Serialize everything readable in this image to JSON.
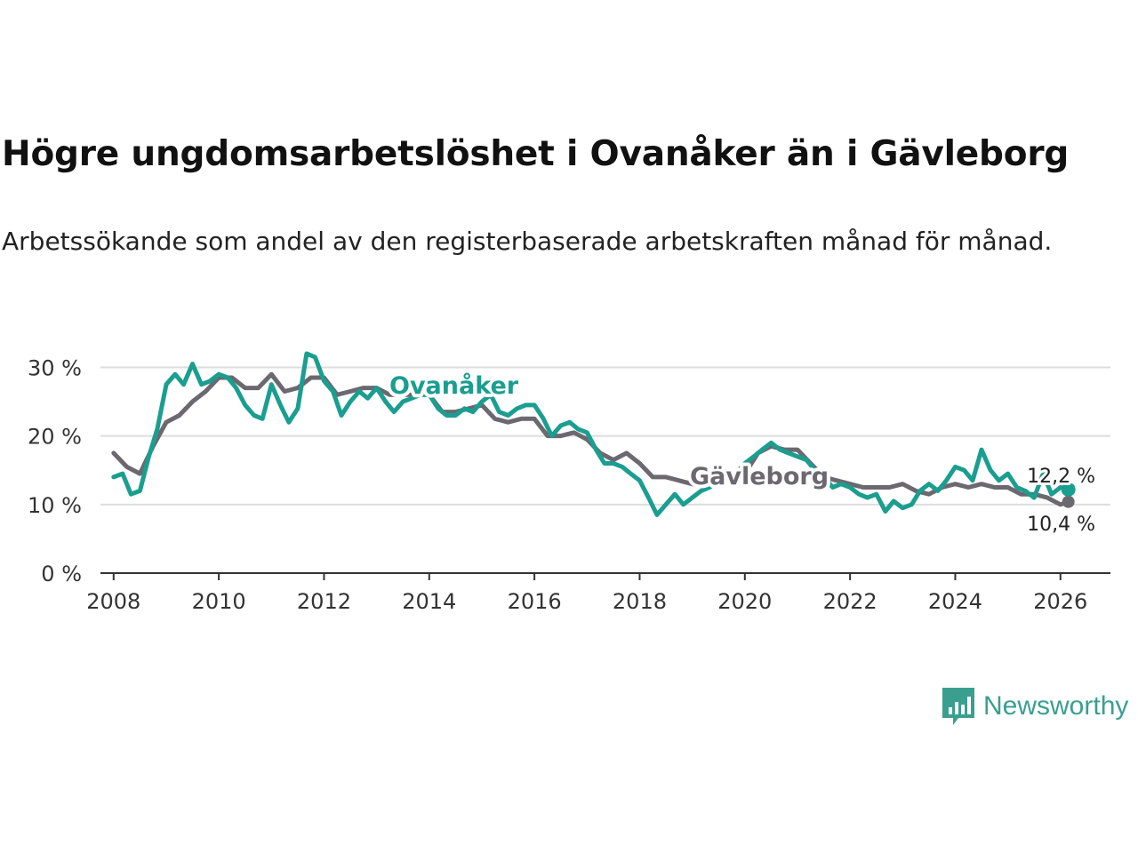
{
  "title": "Högre ungdomsarbetslöshet i Ovanåker än i Gävleborg",
  "subtitle": "Arbetssökande som andel av den registerbaserade arbetskraften månad för månad.",
  "brand": {
    "name": "Newsworthy",
    "icon": "newsworthy-logo-icon",
    "color": "#3a9f8f"
  },
  "colors": {
    "ovanaker": "#1a9e8f",
    "gavleborg": "#6b6870",
    "grid": "#dddddd",
    "axis": "#333333"
  },
  "chart_data": {
    "type": "line",
    "title": "Högre ungdomsarbetslöshet i Ovanåker än i Gävleborg",
    "xlabel": "",
    "ylabel": "",
    "xlim": [
      2007.75,
      2026.95
    ],
    "ylim": [
      0,
      32
    ],
    "yticks": [
      0,
      10,
      20,
      30
    ],
    "ytick_labels": [
      "0 %",
      "10 %",
      "20 %",
      "30 %"
    ],
    "xticks": [
      2008,
      2010,
      2012,
      2014,
      2016,
      2018,
      2020,
      2022,
      2024,
      2026
    ],
    "xtick_labels": [
      "2008",
      "2010",
      "2012",
      "2014",
      "2016",
      "2018",
      "2020",
      "2022",
      "2024",
      "2026"
    ],
    "grid": "horizontal",
    "series": [
      {
        "name": "Gävleborg",
        "label": "Gävleborg",
        "end_label": "10,4 %",
        "color": "#6b6870",
        "x": [
          2008.0,
          2008.25,
          2008.5,
          2008.75,
          2009.0,
          2009.25,
          2009.5,
          2009.75,
          2010.0,
          2010.25,
          2010.5,
          2010.75,
          2011.0,
          2011.25,
          2011.5,
          2011.75,
          2012.0,
          2012.25,
          2012.5,
          2012.75,
          2013.0,
          2013.25,
          2013.5,
          2013.75,
          2014.0,
          2014.25,
          2014.5,
          2014.75,
          2015.0,
          2015.25,
          2015.5,
          2015.75,
          2016.0,
          2016.25,
          2016.5,
          2016.75,
          2017.0,
          2017.25,
          2017.5,
          2017.75,
          2018.0,
          2018.25,
          2018.5,
          2018.75,
          2019.0,
          2019.25,
          2019.5,
          2019.75,
          2020.0,
          2020.25,
          2020.5,
          2020.75,
          2021.0,
          2021.25,
          2021.5,
          2021.75,
          2022.0,
          2022.25,
          2022.5,
          2022.75,
          2023.0,
          2023.25,
          2023.5,
          2023.75,
          2024.0,
          2024.25,
          2024.5,
          2024.75,
          2025.0,
          2025.25,
          2025.5,
          2025.75,
          2026.0,
          2026.15
        ],
        "values": [
          17.5,
          15.5,
          14.5,
          18.5,
          22.0,
          23.0,
          25.0,
          26.5,
          28.5,
          28.5,
          27.0,
          27.0,
          29.0,
          26.5,
          27.0,
          28.5,
          28.5,
          26.0,
          26.5,
          27.0,
          27.0,
          26.0,
          26.0,
          26.0,
          26.0,
          23.5,
          23.5,
          24.0,
          24.5,
          22.5,
          22.0,
          22.5,
          22.5,
          20.0,
          20.0,
          20.5,
          19.5,
          17.5,
          16.5,
          17.5,
          16.0,
          14.0,
          14.0,
          13.5,
          13.0,
          12.5,
          13.0,
          13.5,
          14.5,
          17.5,
          18.5,
          18.0,
          18.0,
          16.0,
          14.0,
          13.5,
          13.0,
          12.5,
          12.5,
          12.5,
          13.0,
          12.0,
          11.5,
          12.5,
          13.0,
          12.5,
          13.0,
          12.5,
          12.5,
          11.5,
          11.5,
          11.0,
          10.0,
          10.4
        ]
      },
      {
        "name": "Ovanåker",
        "label": "Ovanåker",
        "end_label": "12,2 %",
        "color": "#1a9e8f",
        "x": [
          2008.0,
          2008.17,
          2008.33,
          2008.5,
          2008.67,
          2008.83,
          2009.0,
          2009.17,
          2009.33,
          2009.5,
          2009.67,
          2009.83,
          2010.0,
          2010.17,
          2010.33,
          2010.5,
          2010.67,
          2010.83,
          2011.0,
          2011.17,
          2011.33,
          2011.5,
          2011.67,
          2011.83,
          2012.0,
          2012.17,
          2012.33,
          2012.5,
          2012.67,
          2012.83,
          2013.0,
          2013.17,
          2013.33,
          2013.5,
          2013.67,
          2013.83,
          2014.0,
          2014.17,
          2014.33,
          2014.5,
          2014.67,
          2014.83,
          2015.0,
          2015.17,
          2015.33,
          2015.5,
          2015.67,
          2015.83,
          2016.0,
          2016.17,
          2016.33,
          2016.5,
          2016.67,
          2016.83,
          2017.0,
          2017.17,
          2017.33,
          2017.5,
          2017.67,
          2017.83,
          2018.0,
          2018.17,
          2018.33,
          2018.5,
          2018.67,
          2018.83,
          2019.0,
          2019.17,
          2019.33,
          2019.5,
          2019.67,
          2019.83,
          2020.0,
          2020.17,
          2020.33,
          2020.5,
          2020.67,
          2020.83,
          2021.0,
          2021.17,
          2021.33,
          2021.5,
          2021.67,
          2021.83,
          2022.0,
          2022.17,
          2022.33,
          2022.5,
          2022.67,
          2022.83,
          2023.0,
          2023.17,
          2023.33,
          2023.5,
          2023.67,
          2023.83,
          2024.0,
          2024.17,
          2024.33,
          2024.5,
          2024.67,
          2024.83,
          2025.0,
          2025.17,
          2025.33,
          2025.5,
          2025.67,
          2025.83,
          2026.0,
          2026.15
        ],
        "values": [
          14.0,
          14.5,
          11.5,
          12.0,
          17.0,
          21.0,
          27.5,
          29.0,
          27.5,
          30.5,
          27.5,
          28.0,
          29.0,
          28.5,
          27.0,
          24.5,
          23.0,
          22.5,
          27.5,
          24.5,
          22.0,
          24.0,
          32.0,
          31.5,
          28.0,
          26.5,
          23.0,
          25.0,
          26.5,
          25.5,
          27.0,
          25.0,
          23.5,
          25.0,
          25.5,
          26.0,
          26.0,
          24.0,
          23.0,
          23.0,
          24.0,
          23.5,
          25.0,
          26.0,
          23.5,
          23.0,
          24.0,
          24.5,
          24.5,
          22.5,
          20.0,
          21.5,
          22.0,
          21.0,
          20.5,
          18.0,
          16.0,
          16.0,
          15.5,
          14.5,
          13.5,
          11.0,
          8.5,
          10.0,
          11.5,
          10.0,
          11.0,
          12.0,
          12.5,
          13.5,
          14.0,
          14.5,
          16.0,
          17.0,
          18.0,
          19.0,
          18.0,
          17.5,
          17.0,
          16.5,
          15.0,
          14.0,
          12.5,
          13.0,
          12.5,
          11.5,
          11.0,
          11.5,
          9.0,
          10.5,
          9.5,
          10.0,
          12.0,
          13.0,
          12.0,
          13.5,
          15.5,
          15.0,
          13.5,
          18.0,
          15.0,
          13.5,
          14.5,
          12.5,
          12.0,
          11.0,
          14.5,
          11.5,
          12.5,
          12.2
        ]
      }
    ]
  }
}
